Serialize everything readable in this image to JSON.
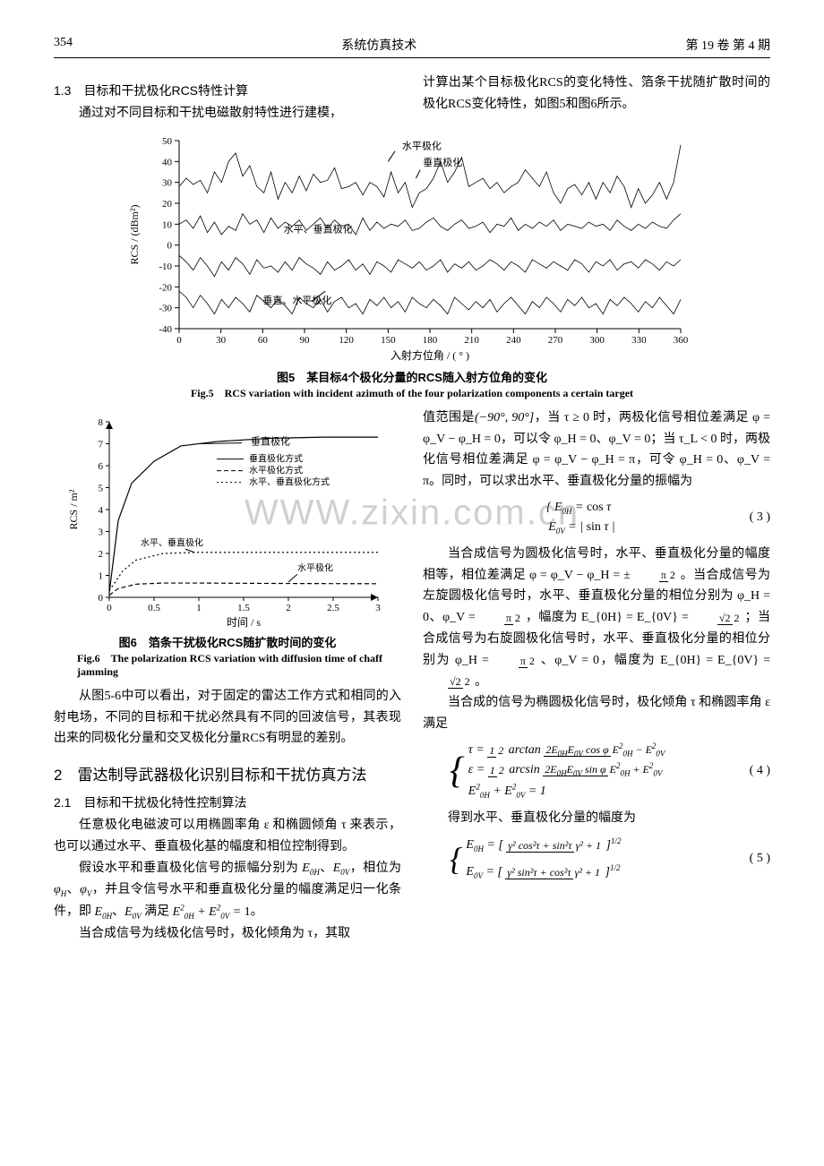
{
  "header": {
    "page": "354",
    "journal": "系统仿真技术",
    "issue": "第 19 卷 第 4 期"
  },
  "sec13": {
    "title": "1.3 目标和干扰极化RCS特性计算",
    "para1": "通过对不同目标和干扰电磁散射特性进行建模，",
    "para1b": "计算出某个目标极化RCS的变化特性、箔条干扰随扩散时间的极化RCS变化特性，如图5和图6所示。"
  },
  "fig5": {
    "caption_cn": "图5 某目标4个极化分量的RCS随入射方位角的变化",
    "caption_en": "Fig.5 RCS variation with incident azimuth of the four polarization components a certain target",
    "xlabel": "入射方位角 / ( ° )",
    "ylabel": "RCS / (dBm²)",
    "xlim": [
      0,
      360
    ],
    "ylim": [
      -40,
      50
    ],
    "xticks": [
      0,
      30,
      60,
      90,
      120,
      150,
      180,
      210,
      240,
      270,
      300,
      330,
      360
    ],
    "yticks": [
      -40,
      -30,
      -20,
      -10,
      0,
      10,
      20,
      30,
      40,
      50
    ],
    "legend": {
      "hpol": "水平极化",
      "vpol": "垂直极化",
      "hv": "水平、垂直极化",
      "vh": "垂直、水平极化"
    },
    "line_color": "#000000",
    "bg": "#ffffff",
    "series_top_values": [
      28,
      32,
      29,
      31,
      25,
      35,
      30,
      40,
      44,
      33,
      38,
      28,
      25,
      35,
      22,
      30,
      25,
      33,
      26,
      34,
      30,
      31,
      37,
      27,
      28,
      30,
      24,
      30,
      28,
      23,
      35,
      25,
      30,
      18,
      25,
      27,
      32,
      40,
      30,
      35,
      42,
      28,
      30,
      32,
      27,
      30,
      25,
      28,
      30,
      36,
      32,
      28,
      35,
      25,
      20,
      27,
      29,
      24,
      30,
      22,
      30,
      25,
      33,
      28,
      18,
      27,
      20,
      24,
      30,
      22,
      30,
      48
    ],
    "series_mid_values": [
      10,
      12,
      8,
      14,
      6,
      11,
      5,
      9,
      7,
      15,
      10,
      12,
      6,
      13,
      8,
      11,
      9,
      12,
      7,
      10,
      13,
      8,
      12,
      9,
      10,
      5,
      13,
      7,
      11,
      8,
      10,
      9,
      12,
      7,
      8,
      11,
      13,
      9,
      7,
      10,
      12,
      8,
      9,
      11,
      6,
      10,
      9,
      13,
      7,
      10,
      8,
      11,
      9,
      12,
      7,
      10,
      9,
      8,
      11,
      9,
      10,
      7,
      12,
      9,
      7,
      10,
      8,
      11,
      9,
      8,
      12,
      15
    ],
    "series_low_values": [
      -5,
      -8,
      -12,
      -6,
      -10,
      -15,
      -8,
      -12,
      -6,
      -9,
      -14,
      -7,
      -11,
      -10,
      -13,
      -8,
      -12,
      -6,
      -9,
      -11,
      -14,
      -8,
      -12,
      -10,
      -7,
      -12,
      -9,
      -14,
      -8,
      -10,
      -13,
      -7,
      -9,
      -11,
      -8,
      -12,
      -10,
      -7,
      -13,
      -9,
      -11,
      -8,
      -12,
      -10,
      -7,
      -9,
      -12,
      -8,
      -10,
      -13,
      -7,
      -9,
      -11,
      -8,
      -10,
      -12,
      -7,
      -9,
      -13,
      -8,
      -10,
      -7,
      -12,
      -9,
      -8,
      -11,
      -7,
      -9,
      -12,
      -8,
      -10,
      -7
    ],
    "series_bottom_values": [
      -22,
      -25,
      -30,
      -24,
      -28,
      -33,
      -26,
      -30,
      -25,
      -28,
      -32,
      -24,
      -27,
      -30,
      -26,
      -29,
      -33,
      -25,
      -28,
      -30,
      -26,
      -32,
      -27,
      -25,
      -30,
      -28,
      -33,
      -26,
      -29,
      -25,
      -30,
      -27,
      -32,
      -25,
      -28,
      -30,
      -26,
      -29,
      -33,
      -25,
      -28,
      -31,
      -27,
      -30,
      -26,
      -32,
      -28,
      -25,
      -29,
      -33,
      -27,
      -30,
      -25,
      -28,
      -32,
      -26,
      -29,
      -25,
      -30,
      -28,
      -33,
      -26,
      -29,
      -25,
      -28,
      -32,
      -27,
      -30,
      -25,
      -29,
      -33,
      -26
    ]
  },
  "fig6": {
    "caption_cn": "图6 箔条干扰极化RCS随扩散时间的变化",
    "caption_en": "Fig.6 The polarization RCS variation with diffusion time of chaff jamming",
    "xlabel": "时间 / s",
    "ylabel": "RCS / m²",
    "xlim": [
      0,
      3.0
    ],
    "ylim": [
      0,
      8
    ],
    "xticks": [
      0,
      0.5,
      1.0,
      1.5,
      2.0,
      2.5,
      3.0
    ],
    "yticks": [
      0,
      1,
      2,
      3,
      4,
      5,
      6,
      7,
      8
    ],
    "legend_box": {
      "vpol_label": "垂直极化",
      "v_way": "垂直极化方式",
      "h_way": "水平极化方式",
      "hv_way": "水平、垂直极化方式"
    },
    "annots": {
      "hv_label": "水平、垂直极化",
      "h_label": "水平极化"
    },
    "colors": {
      "solid": "#000000",
      "dash": "#000000",
      "dot": "#000000",
      "bg": "#ffffff"
    },
    "curve_v": [
      [
        0,
        0.2
      ],
      [
        0.1,
        3.5
      ],
      [
        0.25,
        5.2
      ],
      [
        0.5,
        6.2
      ],
      [
        0.8,
        6.9
      ],
      [
        1.2,
        7.1
      ],
      [
        1.8,
        7.25
      ],
      [
        2.4,
        7.3
      ],
      [
        3.0,
        7.3
      ]
    ],
    "curve_h": [
      [
        0,
        0.1
      ],
      [
        0.1,
        0.4
      ],
      [
        0.3,
        0.6
      ],
      [
        0.6,
        0.65
      ],
      [
        1.0,
        0.65
      ],
      [
        2.0,
        0.63
      ],
      [
        3.0,
        0.62
      ]
    ],
    "curve_hv": [
      [
        0,
        0.3
      ],
      [
        0.15,
        1.2
      ],
      [
        0.3,
        1.7
      ],
      [
        0.6,
        2.0
      ],
      [
        1.0,
        2.05
      ],
      [
        2.0,
        2.05
      ],
      [
        3.0,
        2.05
      ]
    ]
  },
  "para_after_fig6": "从图5-6中可以看出，对于固定的雷达工作方式和相同的入射电场，不同的目标和干扰必然具有不同的回波信号，其表现出来的同极化分量和交叉极化分量RCS有明显的差别。",
  "sec2": {
    "title": "2 雷达制导武器极化识别目标和干扰仿真方法",
    "subtitle": "2.1 目标和干扰极化特性控制算法",
    "p1": "任意极化电磁波可以用椭圆率角 ε 和椭圆倾角 τ 来表示，也可以通过水平、垂直极化基的幅度和相位控制得到。",
    "p2_a": "假设水平和垂直极化信号的振幅分别为 ",
    "p2_b": "，相位为 ",
    "p2_c": "，并且令信号水平和垂直极化分量的幅度满足归一化条件，即 ",
    "p2_d": " 满足 ",
    "p2_e": "。",
    "p3": "当合成信号为线极化信号时，极化倾角为 τ，其取"
  },
  "right_col": {
    "p1a": "值范围是",
    "p1a_range": "(−90°, 90°]",
    "p1b": "，当 τ ≥ 0 时，两极化信号相位差满足 φ = φ_V − φ_H = 0，可以令 φ_H = 0、φ_V = 0；当 τ_L < 0 时，两极化信号相位差满足 φ = φ_V − φ_H = π，可令 φ_H = 0、φ_V = π。同时，可以求出水平、垂直极化分量的振幅为",
    "eq3_a": "E_{0H} = cos τ",
    "eq3_b": "E_{0V} = | sin τ |",
    "eq3_num": "( 3 )",
    "p2a": "当合成信号为圆极化信号时，水平、垂直极化分量的幅度相等，相位差满足 φ = φ_V − φ_H = ±",
    "p2a_frac": "π/2",
    "p2a2": "。当合成信号为左旋圆极化信号时，水平、垂直极化分量的相位分别为 φ_H = 0、φ_V = ",
    "p2a3": "，幅度为 E_{0H} = E_{0V} = ",
    "p2a3_frac": "√2 / 2",
    "p2a4": "；当合成信号为右旋圆极化信号时，水平、垂直极化分量的相位分别为 φ_H = ",
    "p2a5": "、φ_V = 0，幅度为 E_{0H} = E_{0V} = ",
    "p2a6": "。",
    "p3": "当合成的信号为椭圆极化信号时，极化倾角 τ 和椭圆率角 ε 满足",
    "eq4_l1": "τ = (1/2) arctan ( 2E_{0H}E_{0V} cos φ / (E²_{0H} − E²_{0V}) )",
    "eq4_l2": "ε = (1/2) arcsin ( 2E_{0H}E_{0V} sin φ / (E²_{0H} + E²_{0V}) )",
    "eq4_l3": "E²_{0H} + E²_{0V} = 1",
    "eq4_num": "( 4 )",
    "p4": "得到水平、垂直极化分量的幅度为",
    "eq5_l1": "E_{0H} = [ (γ² cos²τ + sin²τ) / (γ² + 1) ]^{1/2}",
    "eq5_l2": "E_{0V} = [ (γ² sin²τ + cos²τ) / (γ² + 1) ]^{1/2}",
    "eq5_num": "( 5 )"
  },
  "watermark": "WWW.zixin.com.cn"
}
